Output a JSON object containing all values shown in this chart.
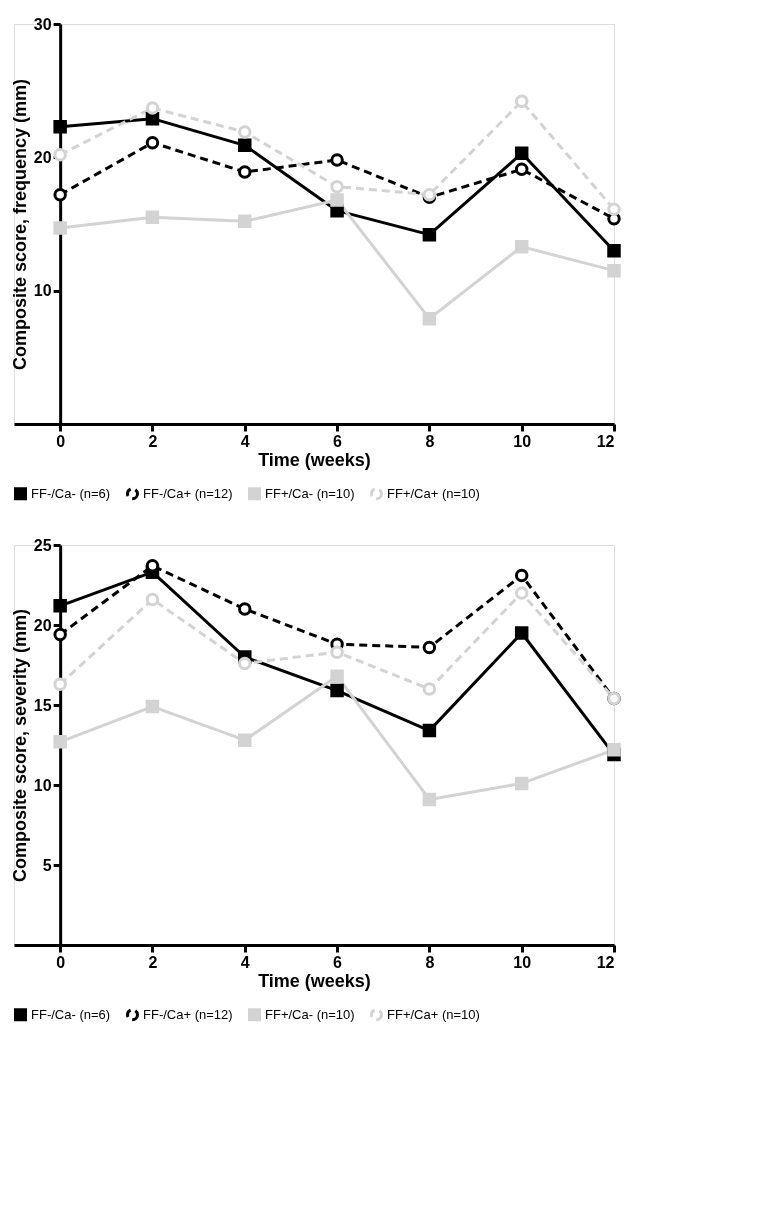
{
  "chart_data": [
    {
      "type": "line",
      "ylabel": "Composite score, frequency (mm)",
      "xlabel": "Time (weeks)",
      "x": [
        0,
        2,
        4,
        6,
        8,
        10,
        12
      ],
      "xlim": [
        -1,
        12
      ],
      "xticks": [
        0,
        2,
        4,
        6,
        8,
        10,
        12
      ],
      "ylim": [
        0,
        30
      ],
      "yticks": [
        10,
        20,
        30
      ],
      "legend": "bottom",
      "series": [
        {
          "name": "FF-/Ca- (n=6)",
          "color": "#000000",
          "marker": "square",
          "line_style": "solid",
          "values": [
            22.3,
            22.9,
            20.9,
            16.0,
            14.2,
            20.3,
            13.0
          ]
        },
        {
          "name": "FF-/Ca+ (n=12)",
          "color": "#000000",
          "marker": "circle",
          "line_style": "dashed",
          "values": [
            17.2,
            21.1,
            18.9,
            19.8,
            17.0,
            19.1,
            15.4
          ]
        },
        {
          "name": "FF+/Ca- (n=10)",
          "color": "#d3d3d3",
          "marker": "square",
          "line_style": "solid",
          "values": [
            14.7,
            15.5,
            15.2,
            16.8,
            7.9,
            13.3,
            11.5
          ]
        },
        {
          "name": "FF+/Ca+ (n=10)",
          "color": "#d3d3d3",
          "marker": "circle",
          "line_style": "dashed",
          "values": [
            20.2,
            23.7,
            21.9,
            17.8,
            17.2,
            24.2,
            16.1
          ]
        }
      ]
    },
    {
      "type": "line",
      "ylabel": "Composite score, severity (mm)",
      "xlabel": "Time (weeks)",
      "x": [
        0,
        2,
        4,
        6,
        8,
        10,
        12
      ],
      "xlim": [
        -1,
        12
      ],
      "xticks": [
        0,
        2,
        4,
        6,
        8,
        10,
        12
      ],
      "ylim": [
        0,
        25
      ],
      "yticks": [
        5,
        10,
        15,
        20,
        25
      ],
      "legend": "bottom",
      "series": [
        {
          "name": "FF-/Ca- (n=6)",
          "color": "#000000",
          "marker": "square",
          "line_style": "solid",
          "values": [
            21.2,
            23.3,
            18.0,
            15.9,
            13.4,
            19.5,
            11.9
          ]
        },
        {
          "name": "FF-/Ca+ (n=12)",
          "color": "#000000",
          "marker": "circle",
          "line_style": "dashed",
          "values": [
            19.4,
            23.7,
            21.0,
            18.8,
            18.6,
            23.1,
            15.4
          ]
        },
        {
          "name": "FF+/Ca- (n=10)",
          "color": "#d3d3d3",
          "marker": "square",
          "line_style": "solid",
          "values": [
            12.7,
            14.9,
            12.8,
            16.8,
            9.1,
            10.1,
            12.2
          ]
        },
        {
          "name": "FF+/Ca+ (n=10)",
          "color": "#d3d3d3",
          "marker": "circle",
          "line_style": "dashed",
          "values": [
            16.3,
            21.6,
            17.6,
            18.3,
            16.0,
            22.0,
            15.4
          ]
        }
      ]
    }
  ]
}
